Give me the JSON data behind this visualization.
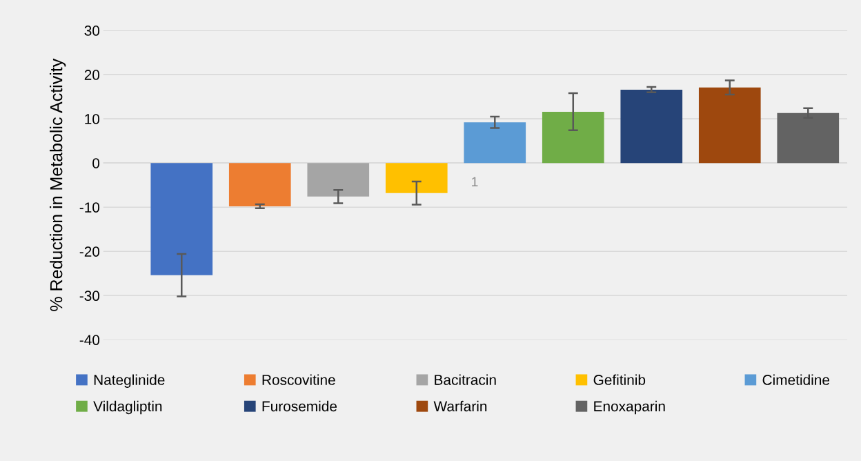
{
  "chart_data": {
    "type": "bar",
    "ylabel": "% Reduction in Metabolic Activity",
    "categories": [
      null,
      null,
      null,
      null,
      null,
      null,
      null,
      null,
      null
    ],
    "series": [
      {
        "name": "Nateglinide",
        "color": "#4472c4",
        "values": [
          -25.4,
          null,
          null,
          null,
          null,
          null,
          null,
          null,
          null
        ],
        "errors": [
          4.8,
          null,
          null,
          null,
          null,
          null,
          null,
          null,
          null
        ]
      },
      {
        "name": "Roscovitine",
        "color": "#ed7d31",
        "values": [
          null,
          -9.8,
          null,
          null,
          null,
          null,
          null,
          null,
          null
        ],
        "errors": [
          null,
          0.45,
          null,
          null,
          null,
          null,
          null,
          null,
          null
        ]
      },
      {
        "name": "Bacitracin",
        "color": "#a5a5a5",
        "values": [
          null,
          null,
          -7.6,
          null,
          null,
          null,
          null,
          null,
          null
        ],
        "errors": [
          null,
          null,
          1.5,
          null,
          null,
          null,
          null,
          null,
          null
        ]
      },
      {
        "name": "Gefitinib",
        "color": "#ffc000",
        "values": [
          null,
          null,
          null,
          -6.8,
          null,
          null,
          null,
          null,
          null
        ],
        "errors": [
          null,
          null,
          null,
          2.6,
          null,
          null,
          null,
          null,
          null
        ]
      },
      {
        "name": "Cimetidine",
        "color": "#5b9bd5",
        "values": [
          null,
          null,
          null,
          null,
          9.2,
          null,
          null,
          null,
          null
        ],
        "errors": [
          null,
          null,
          null,
          null,
          1.3,
          null,
          null,
          null,
          null
        ]
      },
      {
        "name": "Vildagliptin",
        "color": "#70ad47",
        "values": [
          null,
          null,
          null,
          null,
          null,
          11.6,
          null,
          null,
          null
        ],
        "errors": [
          null,
          null,
          null,
          null,
          null,
          4.2,
          null,
          null,
          null
        ]
      },
      {
        "name": "Furosemide",
        "color": "#264478",
        "values": [
          null,
          null,
          null,
          null,
          null,
          null,
          16.6,
          null,
          null
        ],
        "errors": [
          null,
          null,
          null,
          null,
          null,
          null,
          0.6,
          null,
          null
        ]
      },
      {
        "name": "Warfarin",
        "color": "#9e480e",
        "values": [
          null,
          null,
          null,
          null,
          null,
          null,
          null,
          17.1,
          null
        ],
        "errors": [
          null,
          null,
          null,
          null,
          null,
          null,
          null,
          1.6,
          null
        ]
      },
      {
        "name": "Enoxaparin",
        "color": "#636363",
        "values": [
          null,
          null,
          null,
          null,
          null,
          null,
          null,
          null,
          11.3
        ],
        "errors": [
          null,
          null,
          null,
          null,
          null,
          null,
          null,
          null,
          1.1
        ]
      }
    ],
    "annotations": [
      "1"
    ],
    "ylim": [
      -40,
      30
    ],
    "yticks": [
      -40,
      -30,
      -20,
      -10,
      0,
      10,
      20,
      30
    ],
    "grid": "y",
    "legend": "bottom",
    "tick_labels": "y"
  }
}
